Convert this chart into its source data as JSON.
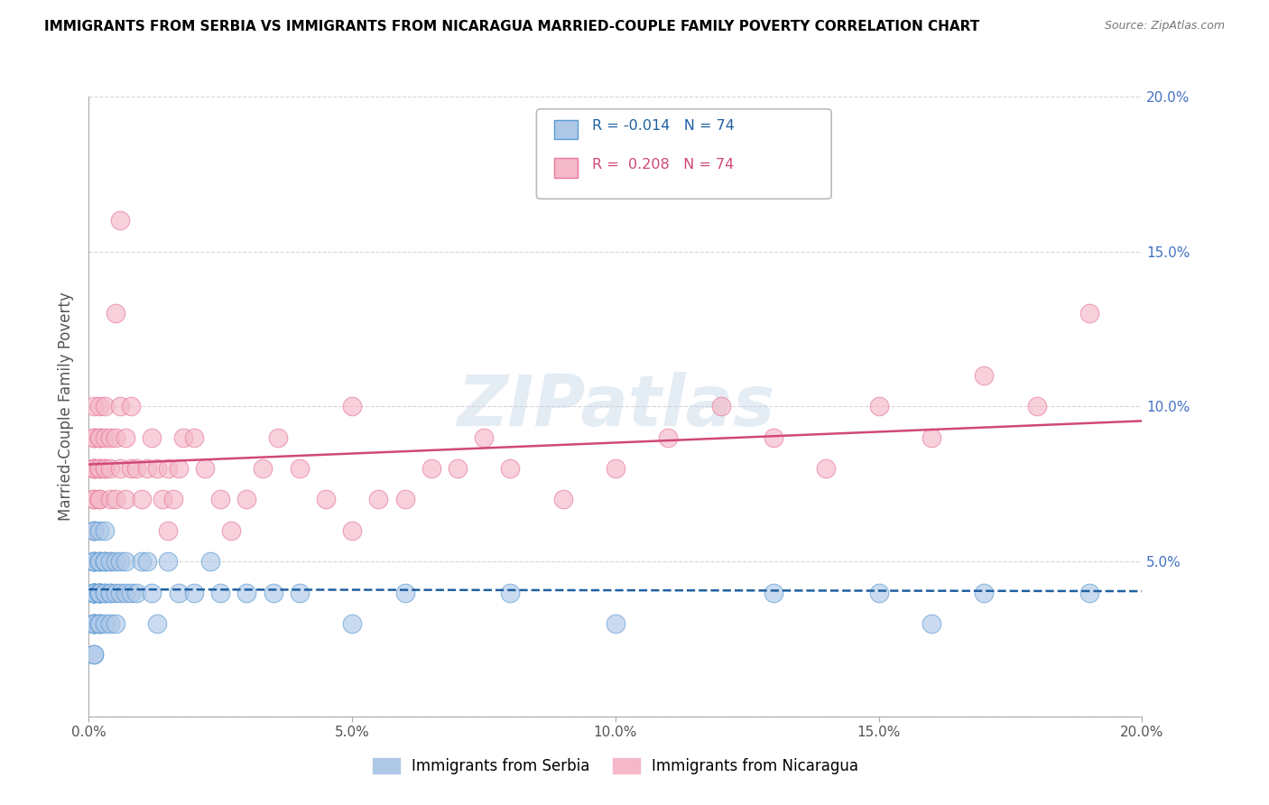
{
  "title": "IMMIGRANTS FROM SERBIA VS IMMIGRANTS FROM NICARAGUA MARRIED-COUPLE FAMILY POVERTY CORRELATION CHART",
  "source": "Source: ZipAtlas.com",
  "ylabel": "Married-Couple Family Poverty",
  "xlabel_serbia": "Immigrants from Serbia",
  "xlabel_nicaragua": "Immigrants from Nicaragua",
  "R_serbia": -0.014,
  "R_nicaragua": 0.208,
  "N_serbia": 74,
  "N_nicaragua": 74,
  "xmin": 0.0,
  "xmax": 0.2,
  "ymin": 0.0,
  "ymax": 0.2,
  "serbia_color": "#aec8e8",
  "nicaragua_color": "#f4b8c8",
  "serbia_edge_color": "#5b9bd5",
  "nicaragua_edge_color": "#e8789a",
  "serbia_line_color": "#2060a0",
  "nicaragua_line_color": "#d04878",
  "right_axis_color": "#4472c4",
  "watermark": "ZIPatlas",
  "serbia_x": [
    0.001,
    0.001,
    0.001,
    0.001,
    0.001,
    0.001,
    0.001,
    0.001,
    0.001,
    0.001,
    0.001,
    0.001,
    0.001,
    0.001,
    0.001,
    0.001,
    0.001,
    0.001,
    0.001,
    0.001,
    0.002,
    0.002,
    0.002,
    0.002,
    0.002,
    0.002,
    0.002,
    0.002,
    0.002,
    0.002,
    0.002,
    0.002,
    0.002,
    0.003,
    0.003,
    0.003,
    0.003,
    0.003,
    0.003,
    0.003,
    0.004,
    0.004,
    0.004,
    0.004,
    0.005,
    0.005,
    0.005,
    0.006,
    0.006,
    0.007,
    0.007,
    0.008,
    0.009,
    0.01,
    0.011,
    0.012,
    0.013,
    0.015,
    0.017,
    0.02,
    0.023,
    0.025,
    0.03,
    0.035,
    0.04,
    0.05,
    0.06,
    0.08,
    0.1,
    0.13,
    0.15,
    0.16,
    0.17,
    0.19
  ],
  "serbia_y": [
    0.04,
    0.04,
    0.04,
    0.04,
    0.03,
    0.03,
    0.03,
    0.05,
    0.05,
    0.05,
    0.04,
    0.04,
    0.03,
    0.02,
    0.02,
    0.05,
    0.06,
    0.06,
    0.04,
    0.03,
    0.05,
    0.05,
    0.04,
    0.04,
    0.04,
    0.03,
    0.03,
    0.05,
    0.06,
    0.04,
    0.03,
    0.04,
    0.04,
    0.05,
    0.05,
    0.04,
    0.04,
    0.03,
    0.06,
    0.05,
    0.05,
    0.04,
    0.04,
    0.03,
    0.05,
    0.04,
    0.03,
    0.04,
    0.05,
    0.04,
    0.05,
    0.04,
    0.04,
    0.05,
    0.05,
    0.04,
    0.03,
    0.05,
    0.04,
    0.04,
    0.05,
    0.04,
    0.04,
    0.04,
    0.04,
    0.03,
    0.04,
    0.04,
    0.03,
    0.04,
    0.04,
    0.03,
    0.04,
    0.04
  ],
  "nicaragua_x": [
    0.001,
    0.001,
    0.001,
    0.001,
    0.001,
    0.001,
    0.001,
    0.001,
    0.001,
    0.001,
    0.002,
    0.002,
    0.002,
    0.002,
    0.002,
    0.002,
    0.002,
    0.003,
    0.003,
    0.003,
    0.003,
    0.004,
    0.004,
    0.004,
    0.005,
    0.005,
    0.006,
    0.006,
    0.007,
    0.007,
    0.008,
    0.009,
    0.01,
    0.011,
    0.012,
    0.013,
    0.014,
    0.015,
    0.016,
    0.017,
    0.018,
    0.02,
    0.022,
    0.025,
    0.027,
    0.03,
    0.033,
    0.036,
    0.04,
    0.045,
    0.05,
    0.055,
    0.06,
    0.065,
    0.07,
    0.075,
    0.08,
    0.09,
    0.1,
    0.11,
    0.12,
    0.13,
    0.14,
    0.15,
    0.16,
    0.17,
    0.18,
    0.19,
    0.004,
    0.005,
    0.006,
    0.008,
    0.015,
    0.05
  ],
  "nicaragua_y": [
    0.08,
    0.09,
    0.07,
    0.08,
    0.06,
    0.1,
    0.08,
    0.07,
    0.09,
    0.08,
    0.07,
    0.09,
    0.08,
    0.1,
    0.07,
    0.08,
    0.09,
    0.09,
    0.08,
    0.1,
    0.08,
    0.09,
    0.07,
    0.08,
    0.09,
    0.07,
    0.08,
    0.1,
    0.09,
    0.07,
    0.08,
    0.08,
    0.07,
    0.08,
    0.09,
    0.08,
    0.07,
    0.08,
    0.07,
    0.08,
    0.09,
    0.09,
    0.08,
    0.07,
    0.06,
    0.07,
    0.08,
    0.09,
    0.08,
    0.07,
    0.06,
    0.07,
    0.07,
    0.08,
    0.08,
    0.09,
    0.08,
    0.07,
    0.08,
    0.09,
    0.1,
    0.09,
    0.08,
    0.1,
    0.09,
    0.11,
    0.1,
    0.13,
    0.05,
    0.13,
    0.16,
    0.1,
    0.06,
    0.1
  ]
}
